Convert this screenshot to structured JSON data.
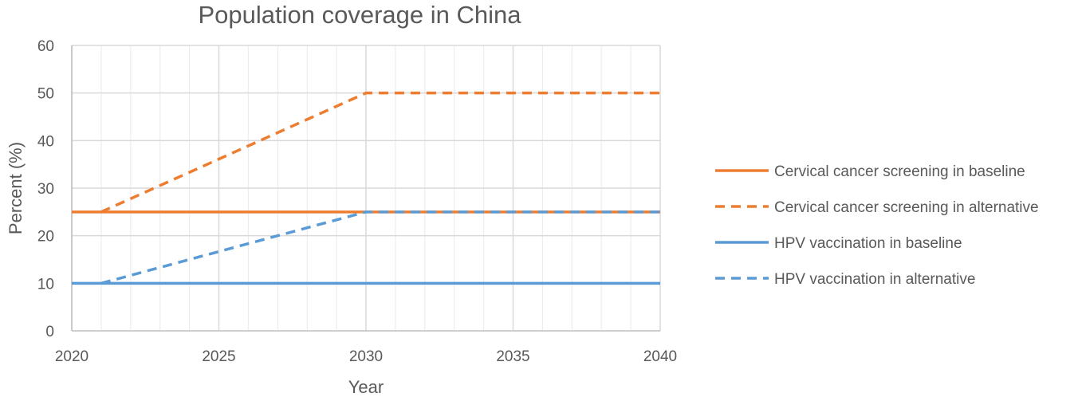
{
  "chart_data": {
    "type": "line",
    "title": "Population coverage in China",
    "xlabel": "Year",
    "ylabel": "Percent (%)",
    "xlim": [
      2020,
      2040
    ],
    "ylim": [
      0,
      60
    ],
    "x_ticks": [
      2020,
      2025,
      2030,
      2035,
      2040
    ],
    "y_ticks": [
      0,
      10,
      20,
      30,
      40,
      50,
      60
    ],
    "grid": true,
    "legend_position": "right",
    "series": [
      {
        "name": "Cervical cancer screening in baseline",
        "color": "#ED7D31",
        "style": "solid",
        "points": [
          [
            2020,
            25
          ],
          [
            2040,
            25
          ]
        ]
      },
      {
        "name": "Cervical cancer screening in alternative",
        "color": "#ED7D31",
        "style": "dashed",
        "points": [
          [
            2021,
            25
          ],
          [
            2030,
            50
          ],
          [
            2040,
            50
          ]
        ]
      },
      {
        "name": "HPV vaccination in baseline",
        "color": "#5B9BD5",
        "style": "solid",
        "points": [
          [
            2020,
            10
          ],
          [
            2040,
            10
          ]
        ]
      },
      {
        "name": "HPV vaccination in alternative",
        "color": "#5B9BD5",
        "style": "dashed",
        "points": [
          [
            2021,
            10
          ],
          [
            2030,
            25
          ],
          [
            2040,
            25
          ]
        ]
      }
    ]
  }
}
